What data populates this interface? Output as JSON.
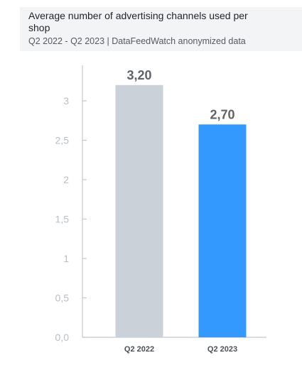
{
  "header": {
    "title": "Average number of advertising channels used per shop",
    "subtitle": "Q2 2022 - Q2 2023 | DataFeedWatch anonymized data"
  },
  "colors": {
    "bar_q2_2022": "#cad1d9",
    "bar_q2_2023": "#3399ff",
    "axis": "#c4c8cd",
    "header_bg": "#f3f4f6"
  },
  "chart_data": {
    "type": "bar",
    "title": "Average number of advertising channels used per shop",
    "subtitle": "Q2 2022 - Q2 2023 | DataFeedWatch anonymized data",
    "categories": [
      "Q2 2022",
      "Q2 2023"
    ],
    "values": [
      3.2,
      2.7
    ],
    "data_labels": [
      "3,20",
      "2,70"
    ],
    "bar_colors": [
      "#cad1d9",
      "#3399ff"
    ],
    "ylim": [
      0,
      3.45
    ],
    "yticks": [
      0,
      0.5,
      1,
      1.5,
      2,
      2.5,
      3
    ],
    "ytick_labels": [
      "0,0",
      "0,5",
      "1",
      "1,5",
      "2",
      "2,5",
      "3"
    ],
    "xlabel": "",
    "ylabel": "",
    "grid": false,
    "legend": "none"
  }
}
